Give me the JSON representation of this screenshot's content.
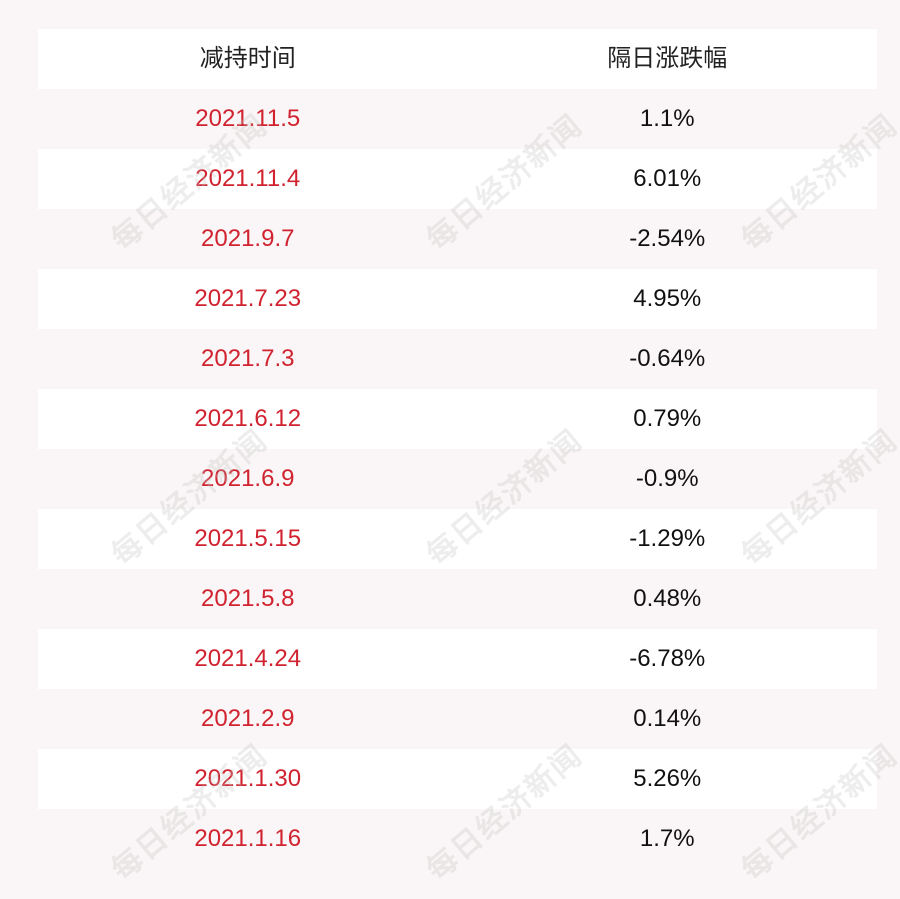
{
  "table": {
    "headers": {
      "date": "减持时间",
      "change": "隔日涨跌幅"
    },
    "rows": [
      {
        "date": "2021.11.5",
        "change": "1.1%"
      },
      {
        "date": "2021.11.4",
        "change": "6.01%"
      },
      {
        "date": "2021.9.7",
        "change": "-2.54%"
      },
      {
        "date": "2021.7.23",
        "change": "4.95%"
      },
      {
        "date": "2021.7.3",
        "change": "-0.64%"
      },
      {
        "date": "2021.6.12",
        "change": "0.79%"
      },
      {
        "date": "2021.6.9",
        "change": "-0.9%"
      },
      {
        "date": "2021.5.15",
        "change": "-1.29%"
      },
      {
        "date": "2021.5.8",
        "change": "0.48%"
      },
      {
        "date": "2021.4.24",
        "change": "-6.78%"
      },
      {
        "date": "2021.2.9",
        "change": "0.14%"
      },
      {
        "date": "2021.1.30",
        "change": "5.26%"
      },
      {
        "date": "2021.1.16",
        "change": "1.7%"
      }
    ]
  },
  "watermark": {
    "text": "每日经济新闻"
  },
  "colors": {
    "date_text": "#d0232f",
    "value_text": "#111111",
    "header_text": "#222222",
    "row_white": "#ffffff",
    "row_tint": "#faf5f6"
  }
}
